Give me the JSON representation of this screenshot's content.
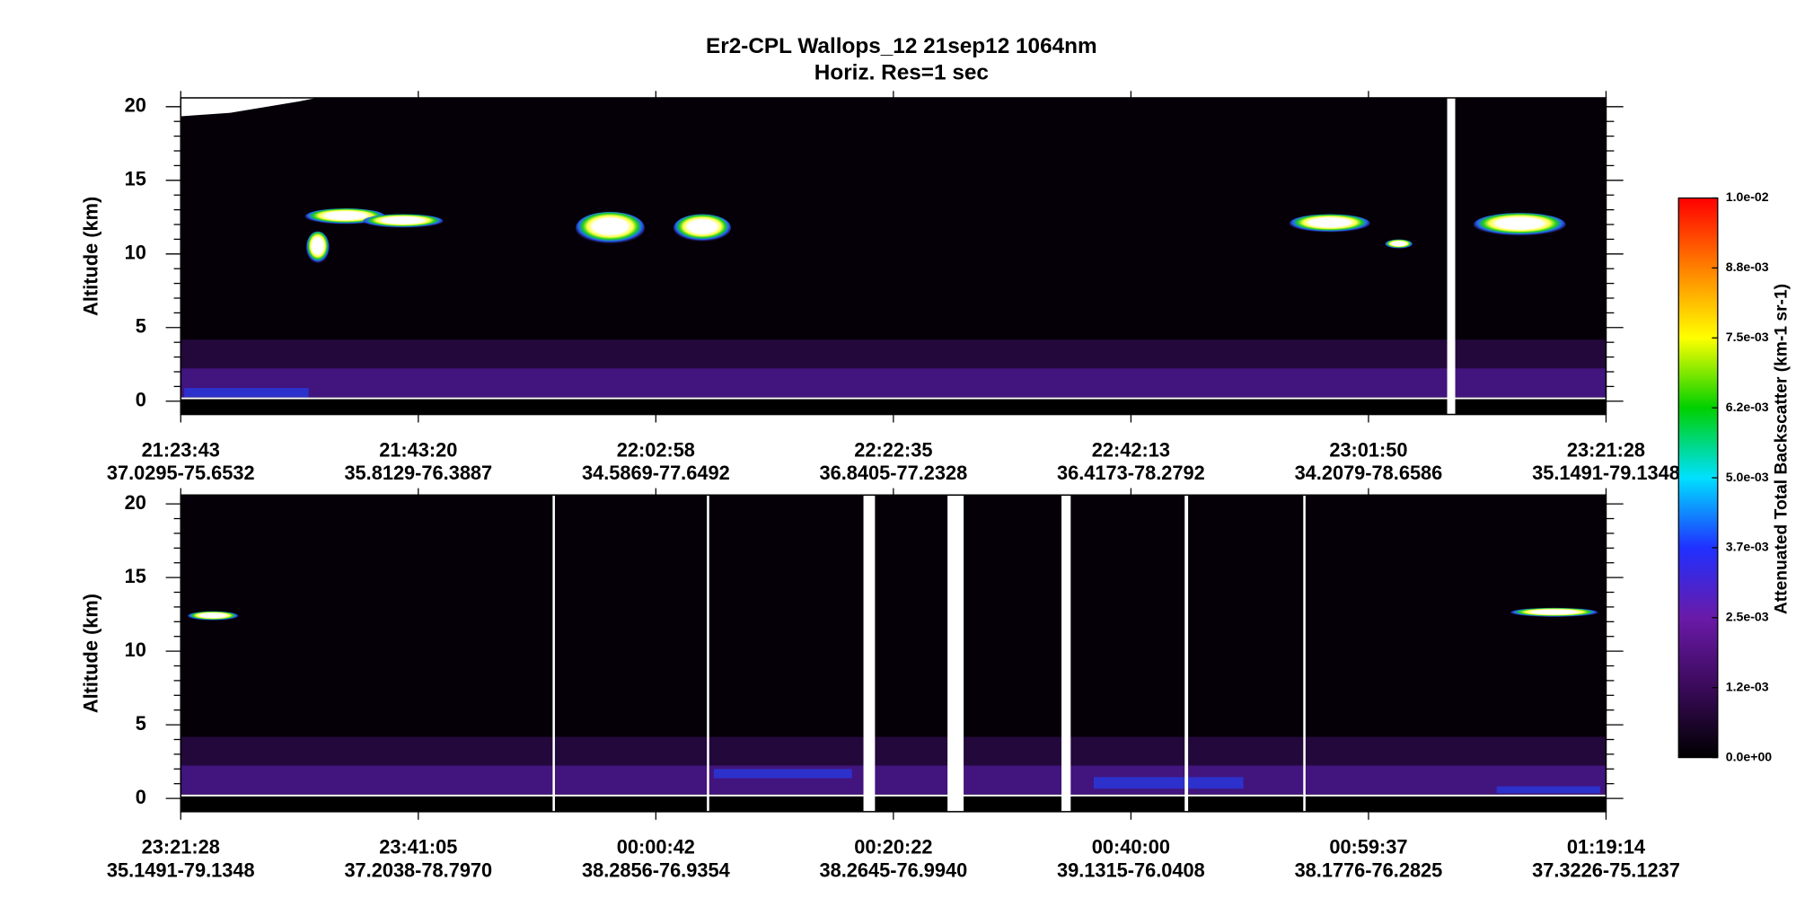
{
  "chart_data": [
    {
      "type": "curtain",
      "title": "Er2-CPL  Wallops_12  21sep12  1064nm",
      "subtitle": "Horiz. Res=1 sec",
      "ylabel": "Altitude (km)",
      "ylim": [
        -0.9,
        20.6
      ],
      "yticks": [
        0,
        5,
        10,
        15,
        20
      ],
      "categories": [
        "21:23:43",
        "21:43:20",
        "22:02:58",
        "22:22:35",
        "22:42:13",
        "23:01:50",
        "23:21:28"
      ],
      "locations": [
        "37.0295-75.6532",
        "35.8129-76.3887",
        "34.5869-77.6492",
        "36.8405-77.2328",
        "36.4173-78.2792",
        "34.2079-78.6586",
        "35.1491-79.1348"
      ]
    },
    {
      "type": "curtain",
      "ylabel": "Altitude (km)",
      "ylim": [
        -0.9,
        20.6
      ],
      "yticks": [
        0,
        5,
        10,
        15,
        20
      ],
      "categories": [
        "23:21:28",
        "23:41:05",
        "00:00:42",
        "00:20:22",
        "00:40:00",
        "00:59:37",
        "01:19:14"
      ],
      "locations": [
        "35.1491-79.1348",
        "37.2038-78.7970",
        "38.2856-76.9354",
        "38.2645-76.9940",
        "39.1315-76.0408",
        "38.1776-76.2825",
        "37.3226-75.1237"
      ]
    },
    {
      "type": "colorbar",
      "label": "Attenuated Total Backscatter (km-1 sr-1)",
      "zlim": [
        0,
        0.01
      ],
      "zticks": [
        {
          "value": 0,
          "label": "0.0e+00"
        },
        {
          "value": 0.00125,
          "label": "1.2e-03"
        },
        {
          "value": 0.0025,
          "label": "2.5e-03"
        },
        {
          "value": 0.00375,
          "label": "3.7e-03"
        },
        {
          "value": 0.005,
          "label": "5.0e-03"
        },
        {
          "value": 0.00625,
          "label": "6.2e-03"
        },
        {
          "value": 0.0075,
          "label": "7.5e-03"
        },
        {
          "value": 0.00875,
          "label": "8.8e-03"
        },
        {
          "value": 0.01,
          "label": "1.0e-02"
        }
      ],
      "colors": [
        "#000000",
        "#3a0a5a",
        "#6a1aa8",
        "#2030ff",
        "#00e0ff",
        "#00d000",
        "#ffff00",
        "#ff8000",
        "#ff0000"
      ]
    }
  ]
}
